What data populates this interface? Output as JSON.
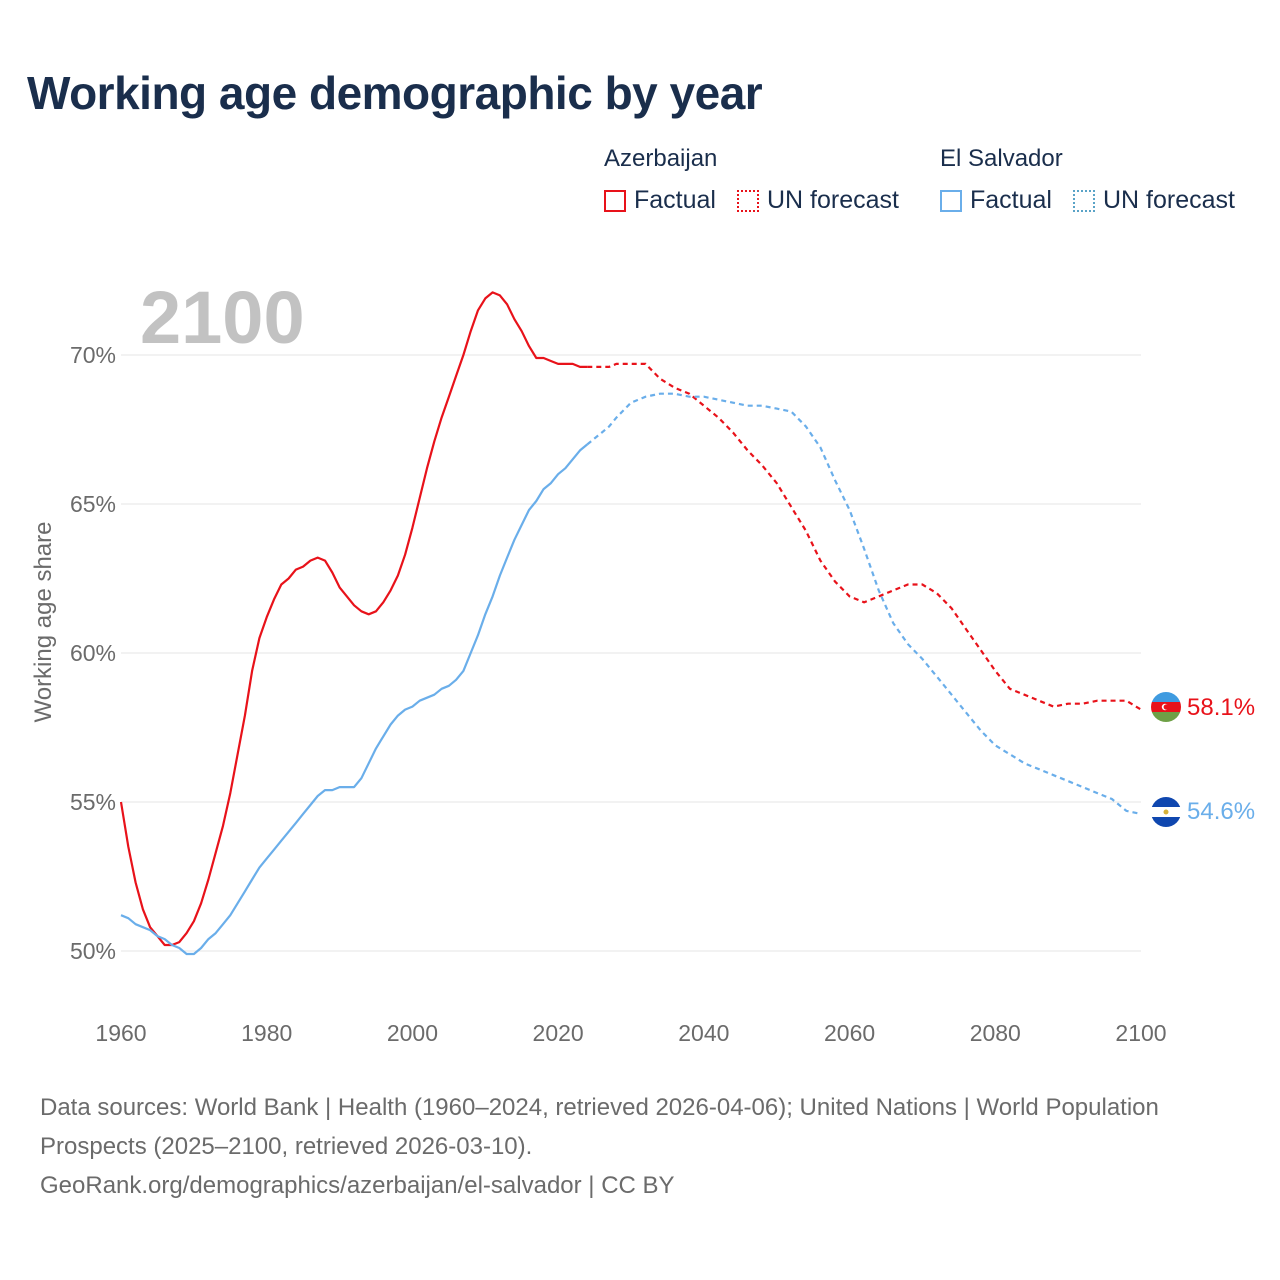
{
  "title": "Working age demographic by year",
  "legend": {
    "groups": [
      {
        "name": "Azerbaijan",
        "factual_label": "Factual",
        "forecast_label": "UN forecast",
        "color": "#e8121a"
      },
      {
        "name": "El Salvador",
        "factual_label": "Factual",
        "forecast_label": "UN forecast",
        "color": "#6aaeea"
      }
    ]
  },
  "year_watermark": "2100",
  "footer": {
    "line1": "Data sources: World Bank | Health (1960–2024, retrieved 2026-04-06); United Nations | World Population Prospects (2025–2100, retrieved 2026-03-10).",
    "line2": "GeoRank.org/demographics/azerbaijan/el-salvador | CC BY"
  },
  "chart_data": {
    "type": "line",
    "title": "Working age demographic by year",
    "xlabel": "",
    "ylabel": "Working age share",
    "xlim": [
      1960,
      2100
    ],
    "ylim": [
      48,
      73
    ],
    "x_ticks": [
      1960,
      1980,
      2000,
      2020,
      2040,
      2060,
      2080,
      2100
    ],
    "x_tick_labels": [
      "1960",
      "1980",
      "2000",
      "2020",
      "2040",
      "2060",
      "2080",
      "2100"
    ],
    "y_ticks": [
      50,
      55,
      60,
      65,
      70
    ],
    "y_tick_labels": [
      "50%",
      "55%",
      "60%",
      "65%",
      "70%"
    ],
    "grid": true,
    "factual_end_year": 2024,
    "series": [
      {
        "name": "Azerbaijan",
        "color": "#e8121a",
        "end_label": "58.1%",
        "points": [
          [
            1960,
            55.0
          ],
          [
            1961,
            53.5
          ],
          [
            1962,
            52.3
          ],
          [
            1963,
            51.4
          ],
          [
            1964,
            50.8
          ],
          [
            1965,
            50.5
          ],
          [
            1966,
            50.2
          ],
          [
            1967,
            50.2
          ],
          [
            1968,
            50.3
          ],
          [
            1969,
            50.6
          ],
          [
            1970,
            51.0
          ],
          [
            1971,
            51.6
          ],
          [
            1972,
            52.4
          ],
          [
            1973,
            53.3
          ],
          [
            1974,
            54.2
          ],
          [
            1975,
            55.3
          ],
          [
            1976,
            56.6
          ],
          [
            1977,
            57.9
          ],
          [
            1978,
            59.4
          ],
          [
            1979,
            60.5
          ],
          [
            1980,
            61.2
          ],
          [
            1981,
            61.8
          ],
          [
            1982,
            62.3
          ],
          [
            1983,
            62.5
          ],
          [
            1984,
            62.8
          ],
          [
            1985,
            62.9
          ],
          [
            1986,
            63.1
          ],
          [
            1987,
            63.2
          ],
          [
            1988,
            63.1
          ],
          [
            1989,
            62.7
          ],
          [
            1990,
            62.2
          ],
          [
            1991,
            61.9
          ],
          [
            1992,
            61.6
          ],
          [
            1993,
            61.4
          ],
          [
            1994,
            61.3
          ],
          [
            1995,
            61.4
          ],
          [
            1996,
            61.7
          ],
          [
            1997,
            62.1
          ],
          [
            1998,
            62.6
          ],
          [
            1999,
            63.3
          ],
          [
            2000,
            64.2
          ],
          [
            2001,
            65.2
          ],
          [
            2002,
            66.2
          ],
          [
            2003,
            67.1
          ],
          [
            2004,
            67.9
          ],
          [
            2005,
            68.6
          ],
          [
            2006,
            69.3
          ],
          [
            2007,
            70.0
          ],
          [
            2008,
            70.8
          ],
          [
            2009,
            71.5
          ],
          [
            2010,
            71.9
          ],
          [
            2011,
            72.1
          ],
          [
            2012,
            72.0
          ],
          [
            2013,
            71.7
          ],
          [
            2014,
            71.2
          ],
          [
            2015,
            70.8
          ],
          [
            2016,
            70.3
          ],
          [
            2017,
            69.9
          ],
          [
            2018,
            69.9
          ],
          [
            2019,
            69.8
          ],
          [
            2020,
            69.7
          ],
          [
            2021,
            69.7
          ],
          [
            2022,
            69.7
          ],
          [
            2023,
            69.6
          ],
          [
            2024,
            69.6
          ],
          [
            2025,
            69.6
          ],
          [
            2026,
            69.6
          ],
          [
            2027,
            69.6
          ],
          [
            2028,
            69.7
          ],
          [
            2029,
            69.7
          ],
          [
            2030,
            69.7
          ],
          [
            2032,
            69.7
          ],
          [
            2034,
            69.2
          ],
          [
            2036,
            68.9
          ],
          [
            2038,
            68.7
          ],
          [
            2040,
            68.3
          ],
          [
            2042,
            67.9
          ],
          [
            2044,
            67.4
          ],
          [
            2046,
            66.8
          ],
          [
            2048,
            66.3
          ],
          [
            2050,
            65.7
          ],
          [
            2052,
            64.9
          ],
          [
            2054,
            64.1
          ],
          [
            2056,
            63.1
          ],
          [
            2058,
            62.4
          ],
          [
            2060,
            61.9
          ],
          [
            2062,
            61.7
          ],
          [
            2064,
            61.9
          ],
          [
            2066,
            62.1
          ],
          [
            2068,
            62.3
          ],
          [
            2070,
            62.3
          ],
          [
            2072,
            62.0
          ],
          [
            2074,
            61.5
          ],
          [
            2076,
            60.8
          ],
          [
            2078,
            60.1
          ],
          [
            2080,
            59.4
          ],
          [
            2082,
            58.8
          ],
          [
            2084,
            58.6
          ],
          [
            2086,
            58.4
          ],
          [
            2088,
            58.2
          ],
          [
            2090,
            58.3
          ],
          [
            2092,
            58.3
          ],
          [
            2094,
            58.4
          ],
          [
            2096,
            58.4
          ],
          [
            2098,
            58.4
          ],
          [
            2100,
            58.1
          ]
        ]
      },
      {
        "name": "El Salvador",
        "color": "#6aaeea",
        "end_label": "54.6%",
        "points": [
          [
            1960,
            51.2
          ],
          [
            1961,
            51.1
          ],
          [
            1962,
            50.9
          ],
          [
            1963,
            50.8
          ],
          [
            1964,
            50.7
          ],
          [
            1965,
            50.5
          ],
          [
            1966,
            50.4
          ],
          [
            1967,
            50.2
          ],
          [
            1968,
            50.1
          ],
          [
            1969,
            49.9
          ],
          [
            1970,
            49.9
          ],
          [
            1971,
            50.1
          ],
          [
            1972,
            50.4
          ],
          [
            1973,
            50.6
          ],
          [
            1974,
            50.9
          ],
          [
            1975,
            51.2
          ],
          [
            1976,
            51.6
          ],
          [
            1977,
            52.0
          ],
          [
            1978,
            52.4
          ],
          [
            1979,
            52.8
          ],
          [
            1980,
            53.1
          ],
          [
            1981,
            53.4
          ],
          [
            1982,
            53.7
          ],
          [
            1983,
            54.0
          ],
          [
            1984,
            54.3
          ],
          [
            1985,
            54.6
          ],
          [
            1986,
            54.9
          ],
          [
            1987,
            55.2
          ],
          [
            1988,
            55.4
          ],
          [
            1989,
            55.4
          ],
          [
            1990,
            55.5
          ],
          [
            1991,
            55.5
          ],
          [
            1992,
            55.5
          ],
          [
            1993,
            55.8
          ],
          [
            1994,
            56.3
          ],
          [
            1995,
            56.8
          ],
          [
            1996,
            57.2
          ],
          [
            1997,
            57.6
          ],
          [
            1998,
            57.9
          ],
          [
            1999,
            58.1
          ],
          [
            2000,
            58.2
          ],
          [
            2001,
            58.4
          ],
          [
            2002,
            58.5
          ],
          [
            2003,
            58.6
          ],
          [
            2004,
            58.8
          ],
          [
            2005,
            58.9
          ],
          [
            2006,
            59.1
          ],
          [
            2007,
            59.4
          ],
          [
            2008,
            60.0
          ],
          [
            2009,
            60.6
          ],
          [
            2010,
            61.3
          ],
          [
            2011,
            61.9
          ],
          [
            2012,
            62.6
          ],
          [
            2013,
            63.2
          ],
          [
            2014,
            63.8
          ],
          [
            2015,
            64.3
          ],
          [
            2016,
            64.8
          ],
          [
            2017,
            65.1
          ],
          [
            2018,
            65.5
          ],
          [
            2019,
            65.7
          ],
          [
            2020,
            66.0
          ],
          [
            2021,
            66.2
          ],
          [
            2022,
            66.5
          ],
          [
            2023,
            66.8
          ],
          [
            2024,
            67.0
          ],
          [
            2025,
            67.2
          ],
          [
            2026,
            67.4
          ],
          [
            2027,
            67.6
          ],
          [
            2028,
            67.9
          ],
          [
            2030,
            68.4
          ],
          [
            2032,
            68.6
          ],
          [
            2034,
            68.7
          ],
          [
            2036,
            68.7
          ],
          [
            2038,
            68.6
          ],
          [
            2040,
            68.6
          ],
          [
            2042,
            68.5
          ],
          [
            2044,
            68.4
          ],
          [
            2046,
            68.3
          ],
          [
            2048,
            68.3
          ],
          [
            2050,
            68.2
          ],
          [
            2052,
            68.1
          ],
          [
            2054,
            67.6
          ],
          [
            2056,
            66.9
          ],
          [
            2058,
            65.8
          ],
          [
            2060,
            64.8
          ],
          [
            2062,
            63.5
          ],
          [
            2064,
            62.1
          ],
          [
            2066,
            61.0
          ],
          [
            2068,
            60.3
          ],
          [
            2070,
            59.8
          ],
          [
            2072,
            59.2
          ],
          [
            2074,
            58.6
          ],
          [
            2076,
            58.0
          ],
          [
            2078,
            57.4
          ],
          [
            2080,
            56.9
          ],
          [
            2082,
            56.6
          ],
          [
            2084,
            56.3
          ],
          [
            2086,
            56.1
          ],
          [
            2088,
            55.9
          ],
          [
            2090,
            55.7
          ],
          [
            2092,
            55.5
          ],
          [
            2094,
            55.3
          ],
          [
            2096,
            55.1
          ],
          [
            2098,
            54.7
          ],
          [
            2100,
            54.6
          ]
        ]
      }
    ]
  }
}
